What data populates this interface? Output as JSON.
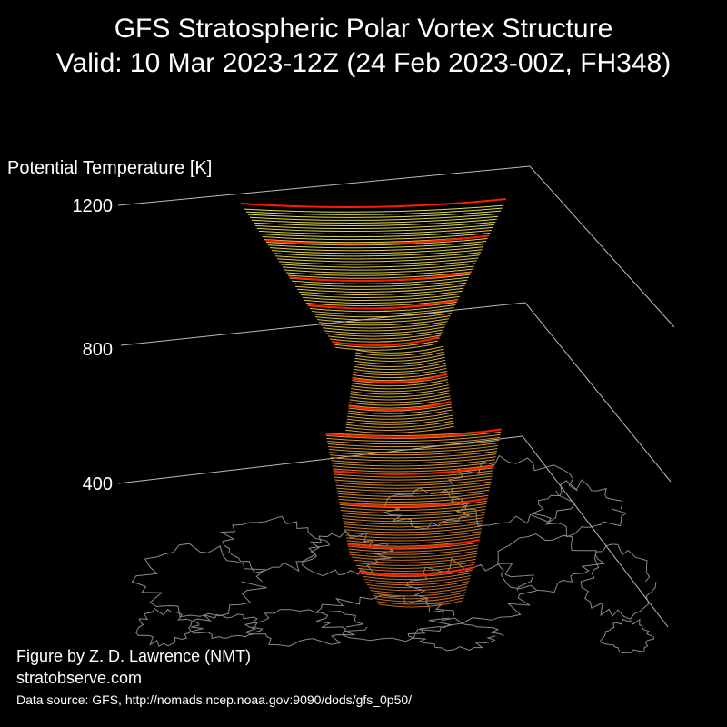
{
  "title": "GFS Stratospheric Polar Vortex Structure",
  "subtitle": "Valid: 10 Mar 2023-12Z  (24 Feb 2023-00Z, FH348)",
  "credit": {
    "author": "Figure by Z. D. Lawrence (NMT)",
    "site": "stratobserve.com",
    "source": "Data source: GFS, http://nomads.ncep.noaa.gov:9090/dods/gfs_0p50/"
  },
  "chart_data": {
    "type": "3d-isosurface",
    "zlabel": "Potential Temperature [K]",
    "zticks": [
      400,
      800,
      1200
    ],
    "zlim": [
      300,
      1200
    ],
    "grid": true,
    "colors": {
      "background": "#000000",
      "grid": "#bbbbbb",
      "coast": "#8a8a8a",
      "edge": "#ff1a00",
      "low": "#c0641a",
      "mid": "#d9a535",
      "high": "#e6e04a"
    },
    "vortex_edge_levels": [
      400,
      460,
      550,
      620,
      700,
      760,
      820,
      900,
      980,
      1040,
      1120,
      1200
    ]
  }
}
